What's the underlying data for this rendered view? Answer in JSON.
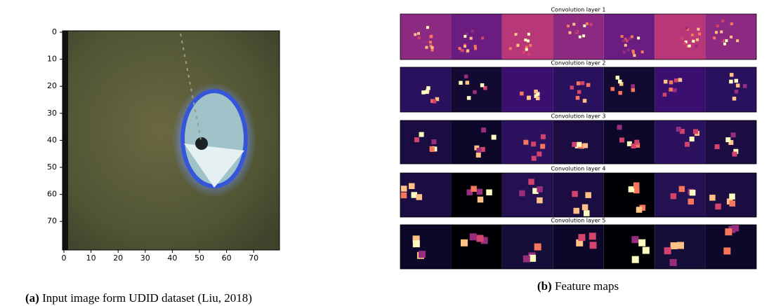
{
  "panel_a": {
    "xticks": [
      0,
      10,
      20,
      30,
      40,
      50,
      60,
      70
    ],
    "yticks": [
      0,
      10,
      20,
      30,
      40,
      50,
      60,
      70
    ],
    "caption_label": "(a)",
    "caption": "Input image form UDID dataset (Liu, 2018)"
  },
  "panel_b": {
    "layers": [
      "Convolution layer 1",
      "Convolution layer 2",
      "Convolution layer 3",
      "Convolution layer 4",
      "Convolution layer 5"
    ],
    "caption_label": "(b)",
    "caption": "Feature maps"
  }
}
